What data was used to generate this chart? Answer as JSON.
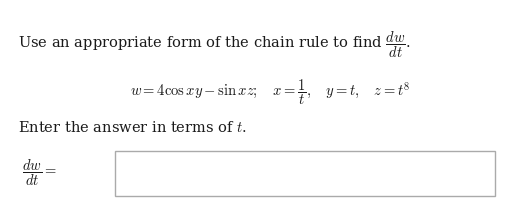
{
  "bg_color": "#f0eeee",
  "bg_inner": "#ffffff",
  "text_color": "#1a1a1a",
  "font_size_main": 10.5,
  "font_size_eq": 10.5,
  "box_edge_color": "#aaaaaa",
  "box_face_color": "#ffffff"
}
